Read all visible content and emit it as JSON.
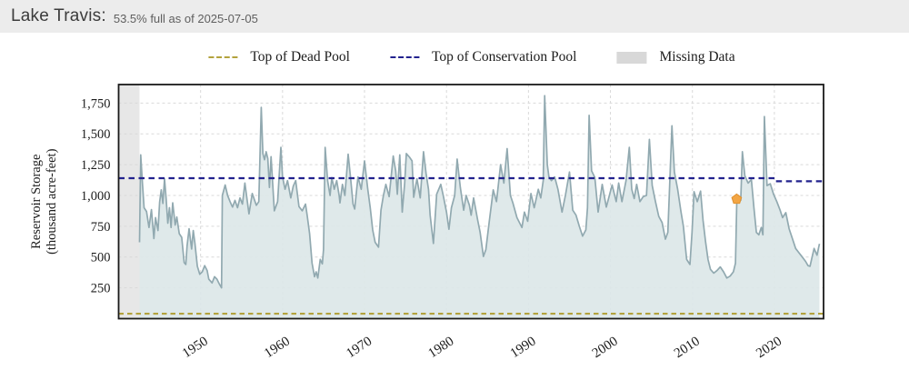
{
  "header": {
    "title": "Lake Travis:",
    "subtitle": "53.5% full as of 2025-07-05"
  },
  "legend": {
    "dead_pool": {
      "label": "Top of Dead Pool",
      "color": "#b3a23d",
      "style": "dashed-line"
    },
    "conservation_pool": {
      "label": "Top of Conservation Pool",
      "color": "#22228e",
      "style": "dashed-line"
    },
    "missing_data": {
      "label": "Missing Data",
      "color": "#d8d8d8",
      "style": "box"
    }
  },
  "chart_data": {
    "type": "area",
    "title": "Lake Travis reservoir storage history",
    "ylabel_line1": "Reservoir Storage",
    "ylabel_line2": "(thousand acre-feet)",
    "xlabel": "",
    "xlim": [
      1940,
      2026
    ],
    "ylim": [
      0,
      1900
    ],
    "grid": "dashed",
    "x_ticks": [
      1950,
      1960,
      1970,
      1980,
      1990,
      2000,
      2010,
      2020
    ],
    "y_ticks": [
      {
        "value": 250,
        "label": "250"
      },
      {
        "value": 500,
        "label": "500"
      },
      {
        "value": 750,
        "label": "750"
      },
      {
        "value": 1000,
        "label": "1,000"
      },
      {
        "value": 1250,
        "label": "1,250"
      },
      {
        "value": 1500,
        "label": "1,500"
      },
      {
        "value": 1750,
        "label": "1,750"
      }
    ],
    "missing_data_range": [
      1940,
      1942.55
    ],
    "dead_pool_value": 40,
    "conservation_pool_segments": [
      {
        "from": 1940,
        "to": 2020.2,
        "value": 1140
      },
      {
        "from": 2020.2,
        "to": 2026,
        "value": 1115
      }
    ],
    "event_marker": {
      "year": 2015.4,
      "value": 970,
      "shape": "pentagon",
      "color": "#f2a544",
      "edge_color": "#e0912f"
    },
    "colors": {
      "line": "#91a9b0",
      "fill": "#dce7e8",
      "grid": "#d9d9d9",
      "missing_band": "#e7e7e7",
      "border": "#1a1a1a"
    },
    "series": {
      "name": "Reservoir Storage (thousand acre-feet)",
      "points": [
        [
          1942.55,
          620
        ],
        [
          1942.7,
          1330
        ],
        [
          1942.9,
          1100
        ],
        [
          1943.1,
          900
        ],
        [
          1943.4,
          870
        ],
        [
          1943.7,
          740
        ],
        [
          1944.0,
          885
        ],
        [
          1944.3,
          650
        ],
        [
          1944.5,
          820
        ],
        [
          1944.8,
          715
        ],
        [
          1945.0,
          945
        ],
        [
          1945.2,
          1045
        ],
        [
          1945.4,
          935
        ],
        [
          1945.6,
          1135
        ],
        [
          1945.8,
          970
        ],
        [
          1946.0,
          775
        ],
        [
          1946.2,
          900
        ],
        [
          1946.4,
          740
        ],
        [
          1946.6,
          940
        ],
        [
          1946.9,
          760
        ],
        [
          1947.1,
          825
        ],
        [
          1947.4,
          690
        ],
        [
          1947.7,
          660
        ],
        [
          1948.0,
          455
        ],
        [
          1948.2,
          440
        ],
        [
          1948.35,
          590
        ],
        [
          1948.6,
          730
        ],
        [
          1948.9,
          565
        ],
        [
          1949.1,
          715
        ],
        [
          1949.3,
          615
        ],
        [
          1949.6,
          425
        ],
        [
          1949.9,
          360
        ],
        [
          1950.2,
          380
        ],
        [
          1950.5,
          430
        ],
        [
          1950.8,
          390
        ],
        [
          1951.0,
          320
        ],
        [
          1951.4,
          290
        ],
        [
          1951.7,
          340
        ],
        [
          1952.0,
          320
        ],
        [
          1952.3,
          280
        ],
        [
          1952.55,
          250
        ],
        [
          1952.65,
          1000
        ],
        [
          1953.0,
          1085
        ],
        [
          1953.3,
          1000
        ],
        [
          1953.6,
          950
        ],
        [
          1953.9,
          905
        ],
        [
          1954.2,
          960
        ],
        [
          1954.5,
          900
        ],
        [
          1954.8,
          980
        ],
        [
          1955.1,
          930
        ],
        [
          1955.4,
          1100
        ],
        [
          1955.9,
          850
        ],
        [
          1956.3,
          1015
        ],
        [
          1956.8,
          920
        ],
        [
          1957.1,
          950
        ],
        [
          1957.4,
          1715
        ],
        [
          1957.6,
          1340
        ],
        [
          1957.8,
          1290
        ],
        [
          1958.0,
          1355
        ],
        [
          1958.2,
          1300
        ],
        [
          1958.4,
          1065
        ],
        [
          1958.6,
          1315
        ],
        [
          1959.0,
          875
        ],
        [
          1959.4,
          950
        ],
        [
          1959.8,
          1390
        ],
        [
          1960.0,
          1150
        ],
        [
          1960.3,
          1050
        ],
        [
          1960.6,
          1120
        ],
        [
          1961.0,
          980
        ],
        [
          1961.3,
          1075
        ],
        [
          1961.6,
          1120
        ],
        [
          1962.0,
          910
        ],
        [
          1962.4,
          875
        ],
        [
          1962.8,
          930
        ],
        [
          1963.0,
          840
        ],
        [
          1963.3,
          690
        ],
        [
          1963.6,
          450
        ],
        [
          1963.9,
          340
        ],
        [
          1964.1,
          380
        ],
        [
          1964.3,
          330
        ],
        [
          1964.6,
          480
        ],
        [
          1964.85,
          445
        ],
        [
          1965.0,
          560
        ],
        [
          1965.2,
          1390
        ],
        [
          1965.5,
          1120
        ],
        [
          1965.8,
          1000
        ],
        [
          1966.0,
          1145
        ],
        [
          1966.3,
          1050
        ],
        [
          1966.6,
          1120
        ],
        [
          1966.9,
          1000
        ],
        [
          1967.0,
          940
        ],
        [
          1967.3,
          1090
        ],
        [
          1967.6,
          1000
        ],
        [
          1968.0,
          1335
        ],
        [
          1968.3,
          1140
        ],
        [
          1968.6,
          930
        ],
        [
          1968.8,
          890
        ],
        [
          1969.2,
          1150
        ],
        [
          1969.6,
          1050
        ],
        [
          1970.0,
          1280
        ],
        [
          1970.4,
          1050
        ],
        [
          1970.7,
          900
        ],
        [
          1971.0,
          720
        ],
        [
          1971.3,
          620
        ],
        [
          1971.7,
          580
        ],
        [
          1972.0,
          880
        ],
        [
          1972.3,
          1000
        ],
        [
          1972.6,
          1090
        ],
        [
          1973.0,
          990
        ],
        [
          1973.5,
          1320
        ],
        [
          1973.8,
          1200
        ],
        [
          1974.0,
          1010
        ],
        [
          1974.3,
          1330
        ],
        [
          1974.6,
          865
        ],
        [
          1974.9,
          1100
        ],
        [
          1975.1,
          1340
        ],
        [
          1975.5,
          1310
        ],
        [
          1975.8,
          1280
        ],
        [
          1976.0,
          985
        ],
        [
          1976.4,
          1135
        ],
        [
          1976.8,
          980
        ],
        [
          1977.2,
          1355
        ],
        [
          1977.5,
          1180
        ],
        [
          1977.8,
          1050
        ],
        [
          1978.0,
          840
        ],
        [
          1978.4,
          610
        ],
        [
          1978.8,
          1010
        ],
        [
          1979.3,
          1090
        ],
        [
          1979.6,
          1000
        ],
        [
          1980.0,
          865
        ],
        [
          1980.3,
          725
        ],
        [
          1980.6,
          900
        ],
        [
          1981.0,
          1000
        ],
        [
          1981.3,
          1295
        ],
        [
          1981.7,
          1060
        ],
        [
          1982.1,
          880
        ],
        [
          1982.4,
          1000
        ],
        [
          1982.8,
          920
        ],
        [
          1983.0,
          840
        ],
        [
          1983.3,
          980
        ],
        [
          1983.8,
          800
        ],
        [
          1984.1,
          700
        ],
        [
          1984.5,
          505
        ],
        [
          1984.8,
          560
        ],
        [
          1985.2,
          780
        ],
        [
          1985.7,
          1045
        ],
        [
          1986.1,
          950
        ],
        [
          1986.6,
          1250
        ],
        [
          1987.0,
          1100
        ],
        [
          1987.4,
          1380
        ],
        [
          1987.8,
          1000
        ],
        [
          1988.1,
          940
        ],
        [
          1988.6,
          820
        ],
        [
          1989.2,
          740
        ],
        [
          1989.5,
          865
        ],
        [
          1989.9,
          790
        ],
        [
          1990.3,
          1015
        ],
        [
          1990.7,
          900
        ],
        [
          1991.2,
          1050
        ],
        [
          1991.5,
          980
        ],
        [
          1991.8,
          1120
        ],
        [
          1991.98,
          1810
        ],
        [
          1992.3,
          1250
        ],
        [
          1992.5,
          1150
        ],
        [
          1992.8,
          1120
        ],
        [
          1993.2,
          1150
        ],
        [
          1993.6,
          1050
        ],
        [
          1994.1,
          865
        ],
        [
          1994.5,
          1000
        ],
        [
          1995.0,
          1190
        ],
        [
          1995.4,
          880
        ],
        [
          1995.8,
          840
        ],
        [
          1996.2,
          750
        ],
        [
          1996.6,
          670
        ],
        [
          1997.0,
          720
        ],
        [
          1997.2,
          900
        ],
        [
          1997.4,
          1650
        ],
        [
          1997.7,
          1200
        ],
        [
          1998.1,
          1145
        ],
        [
          1998.5,
          865
        ],
        [
          1999.0,
          1090
        ],
        [
          1999.5,
          905
        ],
        [
          2000.2,
          1085
        ],
        [
          2000.7,
          950
        ],
        [
          2001.0,
          1100
        ],
        [
          2001.4,
          950
        ],
        [
          2001.9,
          1120
        ],
        [
          2002.3,
          1390
        ],
        [
          2002.6,
          1050
        ],
        [
          2002.9,
          975
        ],
        [
          2003.2,
          1090
        ],
        [
          2003.6,
          950
        ],
        [
          2004.0,
          990
        ],
        [
          2004.4,
          1000
        ],
        [
          2004.75,
          1455
        ],
        [
          2005.1,
          1080
        ],
        [
          2005.5,
          950
        ],
        [
          2005.9,
          830
        ],
        [
          2006.3,
          780
        ],
        [
          2006.7,
          645
        ],
        [
          2007.0,
          700
        ],
        [
          2007.5,
          1565
        ],
        [
          2007.8,
          1190
        ],
        [
          2008.2,
          1050
        ],
        [
          2008.6,
          870
        ],
        [
          2008.9,
          750
        ],
        [
          2009.3,
          480
        ],
        [
          2009.7,
          440
        ],
        [
          2009.95,
          700
        ],
        [
          2010.2,
          1030
        ],
        [
          2010.6,
          950
        ],
        [
          2011.0,
          1035
        ],
        [
          2011.3,
          800
        ],
        [
          2011.6,
          630
        ],
        [
          2011.9,
          480
        ],
        [
          2012.2,
          400
        ],
        [
          2012.6,
          370
        ],
        [
          2013.0,
          390
        ],
        [
          2013.4,
          420
        ],
        [
          2013.8,
          380
        ],
        [
          2014.2,
          330
        ],
        [
          2014.6,
          345
        ],
        [
          2015.0,
          380
        ],
        [
          2015.25,
          450
        ],
        [
          2015.42,
          970
        ],
        [
          2015.6,
          1000
        ],
        [
          2015.9,
          960
        ],
        [
          2016.1,
          1355
        ],
        [
          2016.4,
          1160
        ],
        [
          2016.8,
          1100
        ],
        [
          2017.2,
          1130
        ],
        [
          2017.5,
          900
        ],
        [
          2017.8,
          700
        ],
        [
          2018.1,
          680
        ],
        [
          2018.4,
          740
        ],
        [
          2018.6,
          680
        ],
        [
          2018.78,
          1640
        ],
        [
          2019.1,
          1080
        ],
        [
          2019.5,
          1095
        ],
        [
          2019.9,
          1010
        ],
        [
          2020.3,
          950
        ],
        [
          2020.7,
          880
        ],
        [
          2021.0,
          820
        ],
        [
          2021.4,
          860
        ],
        [
          2021.8,
          730
        ],
        [
          2022.2,
          650
        ],
        [
          2022.6,
          570
        ],
        [
          2023.0,
          535
        ],
        [
          2023.4,
          500
        ],
        [
          2023.8,
          465
        ],
        [
          2024.1,
          430
        ],
        [
          2024.35,
          425
        ],
        [
          2024.6,
          500
        ],
        [
          2024.85,
          570
        ],
        [
          2025.0,
          545
        ],
        [
          2025.2,
          515
        ],
        [
          2025.35,
          560
        ],
        [
          2025.5,
          607
        ]
      ]
    }
  }
}
